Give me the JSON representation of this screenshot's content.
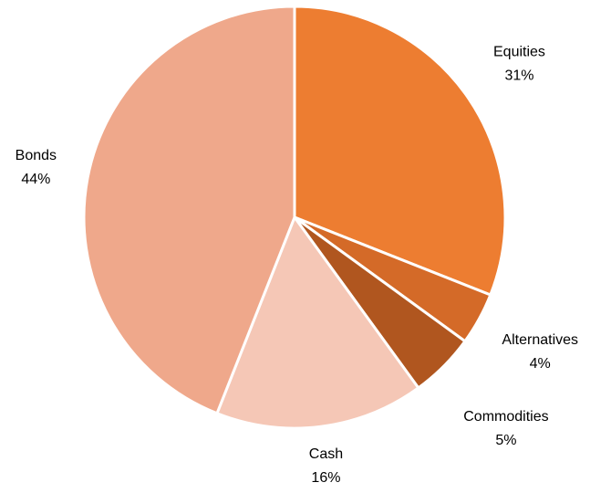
{
  "chart_data": {
    "type": "pie",
    "categories": [
      "Equities",
      "Alternatives",
      "Commodities",
      "Cash",
      "Bonds"
    ],
    "values": [
      31,
      4,
      5,
      16,
      44
    ],
    "value_labels": [
      "31%",
      "4%",
      "5%",
      "16%",
      "44%"
    ],
    "colors": [
      "#ed7d31",
      "#d46a28",
      "#b0561f",
      "#f5c7b6",
      "#efa88b"
    ]
  }
}
